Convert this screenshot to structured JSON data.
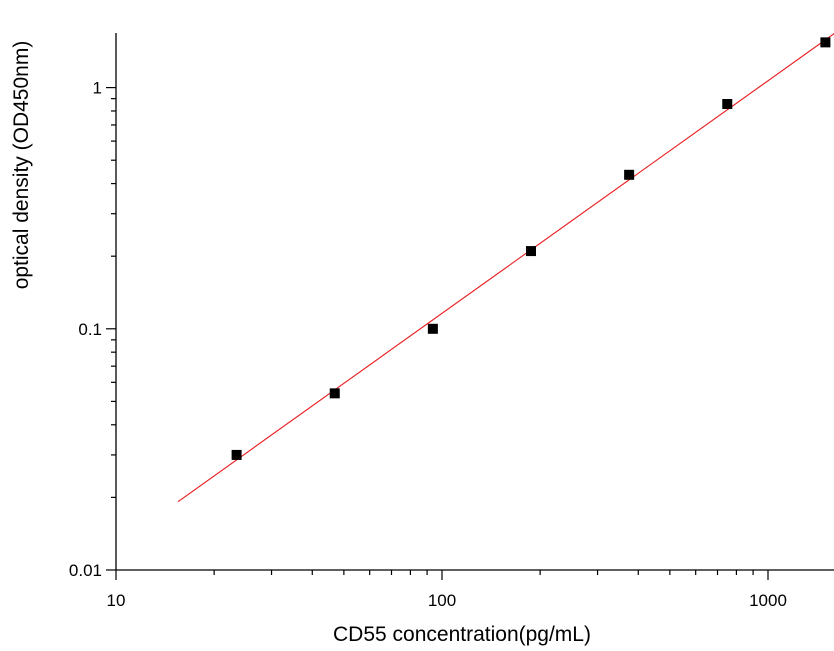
{
  "chart_data": {
    "type": "scatter",
    "xlabel": "CD55 concentration(pg/mL)",
    "ylabel": "optical density (OD450nm)",
    "x_scale": "log",
    "y_scale": "log",
    "xlim": [
      10,
      1600
    ],
    "ylim": [
      0.01,
      1.7
    ],
    "x_ticks": [
      {
        "value": 10,
        "label": "10"
      },
      {
        "value": 100,
        "label": "100"
      },
      {
        "value": 1000,
        "label": "1000"
      }
    ],
    "y_ticks": [
      {
        "value": 0.01,
        "label": "0.01"
      },
      {
        "value": 0.1,
        "label": "0.1"
      },
      {
        "value": 1,
        "label": "1"
      }
    ],
    "grid": false,
    "points": {
      "x": [
        23.44,
        46.88,
        93.75,
        187.5,
        375,
        750,
        1500
      ],
      "y": [
        0.03,
        0.054,
        0.1,
        0.21,
        0.435,
        0.855,
        1.54
      ]
    },
    "fit_line": {
      "x": [
        15.5,
        1600
      ],
      "y": [
        0.0192,
        1.68
      ]
    },
    "colors": {
      "marker": "#000000",
      "fit_line": "#e8191d",
      "axis": "#000000"
    }
  }
}
